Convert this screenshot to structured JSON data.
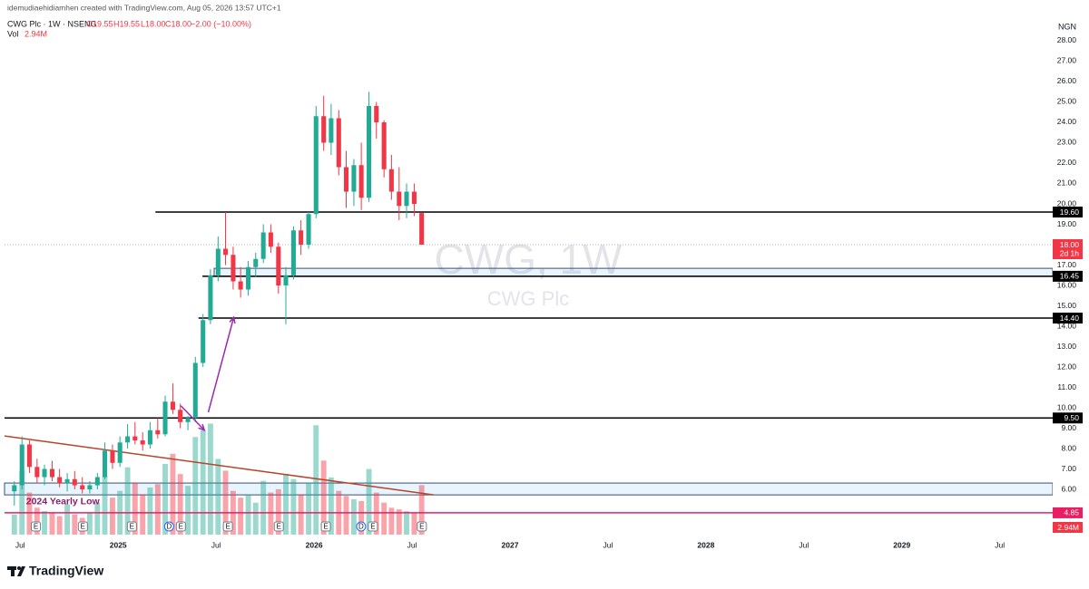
{
  "header": {
    "credit": "idemudiaehidiamhen created with TradingView.com, Aug 05, 2026 13:57 UTC+1",
    "symbol": "CWG Plc · 1W · NSENG",
    "open": "O19.55",
    "high": "H19.55",
    "low": "L18.00",
    "close": "C18.00",
    "change": "−2.00 (−10.00%)",
    "vol_label": "Vol",
    "vol_value": "2.94M"
  },
  "footer": {
    "brand": "TradingView"
  },
  "chart_data": {
    "type": "candlestick",
    "currency": "NGN",
    "watermark": "CWG, 1W",
    "watermark_sub": "CWG Plc",
    "up_color": "#22ab94",
    "down_color": "#f23645",
    "xlim": [
      2024.42,
      2029.77
    ],
    "ylim": [
      3.78,
      29.11
    ],
    "xticks": [
      {
        "value": 2024.5,
        "label": "Jul"
      },
      2025,
      {
        "value": 2025.5,
        "label": "Jul"
      },
      2026,
      {
        "value": 2026.5,
        "label": "Jul"
      },
      2027,
      {
        "value": 2027.5,
        "label": "Jul"
      },
      2028,
      {
        "value": 2028.5,
        "label": "Jul"
      },
      2029,
      {
        "value": 2029.5,
        "label": "Jul"
      }
    ],
    "yticks": [
      {
        "value": 6,
        "label": "6.00"
      },
      {
        "value": 7,
        "label": "7.00"
      },
      {
        "value": 8,
        "label": "8.00"
      },
      {
        "value": 9,
        "label": "9.00"
      },
      {
        "value": 10,
        "label": "10.00"
      },
      {
        "value": 11,
        "label": "11.00"
      },
      {
        "value": 12,
        "label": "12.00"
      },
      {
        "value": 13,
        "label": "13.00"
      },
      {
        "value": 14,
        "label": "14.00"
      },
      {
        "value": 15,
        "label": "15.00"
      },
      {
        "value": 16,
        "label": "16.00"
      },
      {
        "value": 17,
        "label": "17.00"
      },
      {
        "value": 18,
        "label": "18.00"
      },
      {
        "value": 19,
        "label": "19.00"
      },
      {
        "value": 20,
        "label": "20.00"
      },
      {
        "value": 21,
        "label": "21.00"
      },
      {
        "value": 22,
        "label": "22.00"
      },
      {
        "value": 23,
        "label": "23.00"
      },
      {
        "value": 24,
        "label": "24.00"
      },
      {
        "value": 25,
        "label": "25.00"
      },
      {
        "value": 26,
        "label": "26.00"
      },
      {
        "value": 27,
        "label": "27.00"
      },
      {
        "value": 28,
        "label": "28.00"
      }
    ],
    "x": [
      2024.47,
      2024.509,
      2024.547,
      2024.586,
      2024.624,
      2024.663,
      2024.701,
      2024.74,
      2024.778,
      2024.817,
      2024.855,
      2024.894,
      2024.932,
      2024.971,
      2025.009,
      2025.048,
      2025.086,
      2025.125,
      2025.163,
      2025.202,
      2025.24,
      2025.279,
      2025.317,
      2025.356,
      2025.394,
      2025.433,
      2025.471,
      2025.51,
      2025.548,
      2025.587,
      2025.625,
      2025.664,
      2025.702,
      2025.741,
      2025.779,
      2025.818,
      2025.856,
      2025.895,
      2025.933,
      2025.972,
      2026.01,
      2026.049,
      2026.087,
      2026.126,
      2026.164,
      2026.203,
      2026.241,
      2026.28,
      2026.318,
      2026.357,
      2026.395,
      2026.434,
      2026.472,
      2026.511,
      2026.549
    ],
    "ohlc": [
      [
        5.9,
        6.4,
        5.2,
        6.2
      ],
      [
        6.2,
        8.6,
        6.0,
        8.2
      ],
      [
        8.2,
        8.4,
        6.8,
        7.1
      ],
      [
        7.1,
        7.5,
        6.3,
        6.6
      ],
      [
        6.6,
        7.2,
        6.2,
        7.0
      ],
      [
        7.0,
        7.4,
        6.4,
        6.6
      ],
      [
        6.6,
        7.0,
        6.1,
        6.3
      ],
      [
        6.3,
        6.8,
        5.9,
        6.5
      ],
      [
        6.5,
        6.9,
        6.0,
        6.2
      ],
      [
        6.2,
        6.6,
        5.8,
        6.0
      ],
      [
        6.0,
        6.4,
        5.8,
        6.2
      ],
      [
        6.2,
        6.8,
        6.0,
        6.6
      ],
      [
        6.6,
        8.3,
        6.5,
        7.9
      ],
      [
        7.9,
        8.2,
        7.0,
        7.3
      ],
      [
        7.3,
        8.6,
        7.1,
        8.3
      ],
      [
        8.3,
        9.2,
        8.0,
        8.6
      ],
      [
        8.6,
        9.3,
        8.2,
        8.4
      ],
      [
        8.4,
        8.8,
        7.9,
        8.2
      ],
      [
        8.2,
        9.3,
        8.0,
        8.9
      ],
      [
        8.9,
        9.5,
        8.5,
        8.7
      ],
      [
        8.7,
        10.6,
        8.6,
        10.3
      ],
      [
        10.3,
        11.2,
        9.7,
        9.9
      ],
      [
        9.9,
        10.2,
        9.0,
        9.3
      ],
      [
        9.3,
        9.6,
        8.9,
        9.5
      ],
      [
        9.5,
        12.5,
        9.3,
        12.2
      ],
      [
        12.2,
        14.6,
        12.0,
        14.3
      ],
      [
        14.3,
        16.8,
        14.1,
        16.5
      ],
      [
        16.5,
        18.4,
        16.2,
        17.8
      ],
      [
        17.8,
        19.6,
        17.0,
        17.5
      ],
      [
        17.5,
        17.9,
        15.8,
        16.2
      ],
      [
        16.2,
        16.9,
        15.4,
        15.8
      ],
      [
        15.8,
        17.2,
        15.5,
        16.9
      ],
      [
        16.9,
        17.6,
        16.4,
        17.3
      ],
      [
        17.3,
        19.0,
        17.1,
        18.6
      ],
      [
        18.6,
        19.0,
        17.6,
        17.9
      ],
      [
        17.9,
        18.1,
        15.6,
        16.0
      ],
      [
        16.0,
        16.9,
        14.1,
        16.5
      ],
      [
        16.5,
        18.9,
        16.3,
        18.7
      ],
      [
        18.7,
        19.2,
        17.5,
        18.0
      ],
      [
        18.0,
        19.6,
        17.8,
        19.5
      ],
      [
        19.5,
        24.8,
        19.3,
        24.3
      ],
      [
        24.3,
        25.3,
        22.6,
        23.0
      ],
      [
        23.0,
        24.9,
        22.4,
        24.2
      ],
      [
        24.2,
        24.6,
        21.4,
        21.8
      ],
      [
        21.8,
        22.6,
        19.8,
        20.6
      ],
      [
        20.6,
        22.2,
        19.9,
        21.9
      ],
      [
        21.9,
        23.0,
        19.7,
        20.3
      ],
      [
        20.3,
        25.5,
        20.1,
        24.8
      ],
      [
        24.8,
        25.0,
        23.2,
        24.0
      ],
      [
        24.0,
        24.1,
        21.3,
        21.7
      ],
      [
        21.7,
        22.4,
        20.2,
        20.6
      ],
      [
        20.6,
        21.8,
        19.2,
        19.9
      ],
      [
        19.9,
        21.0,
        19.3,
        20.6
      ],
      [
        20.6,
        21.0,
        19.4,
        20.0
      ],
      [
        19.55,
        19.55,
        18.0,
        18.0
      ]
    ],
    "volume": {
      "vlim": [
        0,
        7
      ],
      "values": [
        1.2,
        3.8,
        2.5,
        1.6,
        1.4,
        1.3,
        1.1,
        1.8,
        1.2,
        1.0,
        1.3,
        1.9,
        3.5,
        2.2,
        2.6,
        4.0,
        3.1,
        2.4,
        2.8,
        3.0,
        4.2,
        4.8,
        3.6,
        2.9,
        5.8,
        6.2,
        6.6,
        4.5,
        3.8,
        2.6,
        2.2,
        2.4,
        1.9,
        3.2,
        2.5,
        2.7,
        3.6,
        3.3,
        2.4,
        3.1,
        6.5,
        4.4,
        3.4,
        2.6,
        2.3,
        2.1,
        2.0,
        3.9,
        2.5,
        1.9,
        1.6,
        1.5,
        1.4,
        1.3,
        2.94
      ],
      "last_label": "2.94M",
      "color": "#f23645"
    },
    "last_price": {
      "value": 18.0,
      "label": "18.00",
      "countdown": "2d 1h",
      "color": "#f23645"
    },
    "levels": [
      {
        "value": 19.6,
        "label": "19.60",
        "from": 2025.19,
        "color": "#000000"
      },
      {
        "value": 16.45,
        "label": "16.45",
        "from": 2025.43,
        "color": "#000000"
      },
      {
        "value": 14.4,
        "label": "14.40",
        "from": 2025.41,
        "color": "#000000"
      },
      {
        "value": 9.5,
        "label": "9.50",
        "from": 2024.42,
        "color": "#000000"
      },
      {
        "value": 4.85,
        "label": "4.85",
        "from": 2024.42,
        "color": "#e91e63"
      }
    ],
    "zones": [
      {
        "from": 16.44,
        "to": 16.84,
        "start": 2025.49
      },
      {
        "from": 5.73,
        "to": 6.31,
        "start": 2024.42
      }
    ],
    "trendline": {
      "x": [
        2024.42,
        2026.61
      ],
      "y": [
        8.62,
        5.73
      ],
      "color": "#b5462a"
    },
    "arrows": [
      {
        "x": [
          2025.46,
          2025.59
        ],
        "y": [
          9.78,
          14.44
        ]
      },
      {
        "x": [
          2025.32,
          2025.44
        ],
        "y": [
          10.1,
          8.9
        ]
      }
    ],
    "arrow_color": "#9c27b0",
    "annotation": {
      "text": "2024 Yearly Low",
      "x": 2024.53,
      "y": 5.4,
      "color": "#8a1c6f"
    },
    "events": [
      {
        "x": 2024.58,
        "label": "E"
      },
      {
        "x": 2024.82,
        "label": "E"
      },
      {
        "x": 2025.07,
        "label": "E"
      },
      {
        "x": 2025.26,
        "label": "D"
      },
      {
        "x": 2025.32,
        "label": "E"
      },
      {
        "x": 2025.56,
        "label": "E"
      },
      {
        "x": 2025.82,
        "label": "E"
      },
      {
        "x": 2026.06,
        "label": "E"
      },
      {
        "x": 2026.24,
        "label": "D"
      },
      {
        "x": 2026.3,
        "label": "E"
      },
      {
        "x": 2026.55,
        "label": "E"
      }
    ]
  }
}
